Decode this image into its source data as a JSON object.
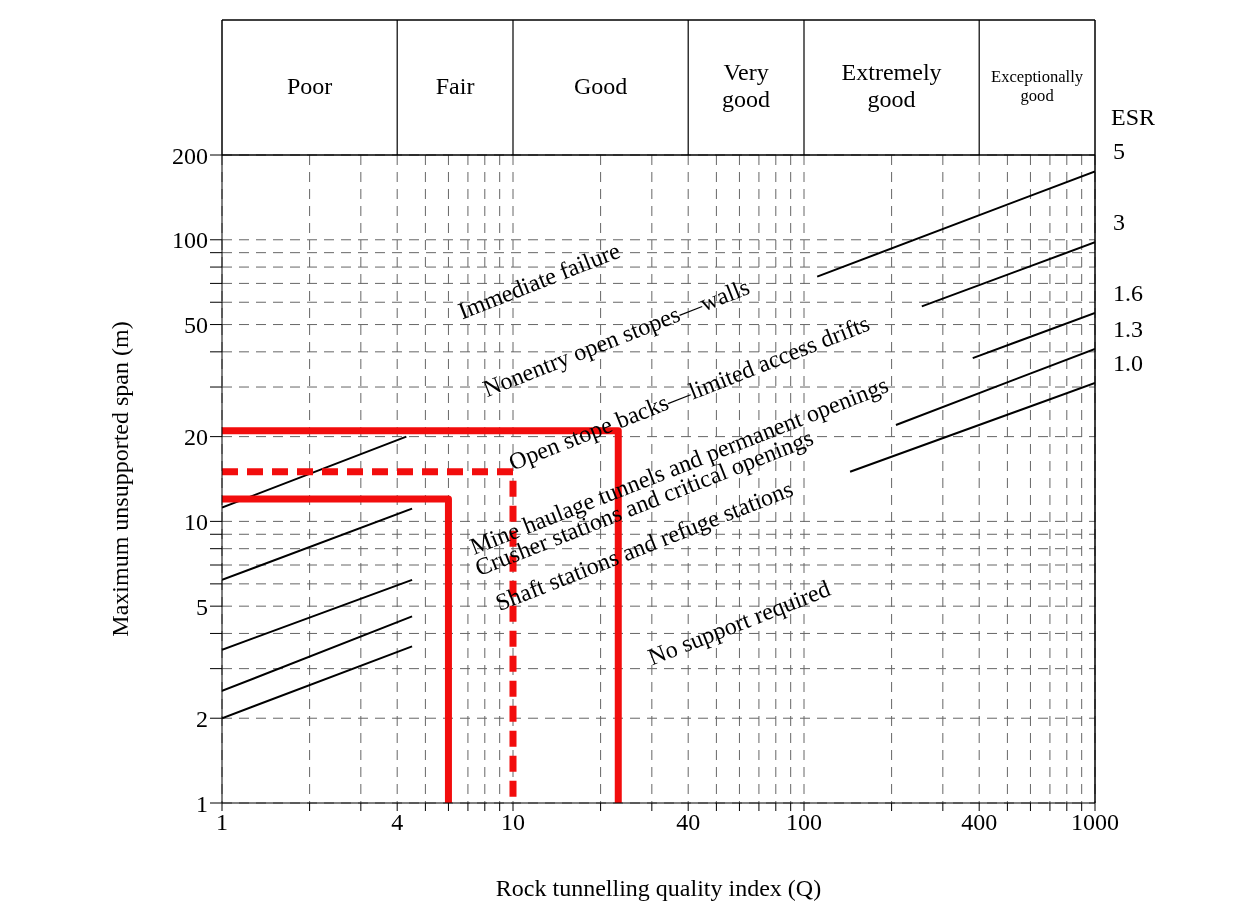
{
  "chart_data": {
    "type": "line",
    "xlabel": "Rock tunnelling quality index (Q)",
    "ylabel": "Maximum unsupported span (m)",
    "legend_title": "ESR",
    "log": "xy",
    "grid": true,
    "marker": "none",
    "line_style": "solid",
    "xlim": [
      1,
      1000
    ],
    "ylim": [
      1,
      200
    ],
    "xticks": [
      1,
      {
        "value": 2,
        "label": null
      },
      {
        "value": 3,
        "label": null
      },
      4,
      {
        "value": 5,
        "label": null
      },
      {
        "value": 6,
        "label": null
      },
      {
        "value": 7,
        "label": null
      },
      {
        "value": 8,
        "label": null
      },
      {
        "value": 9,
        "label": null
      },
      10,
      {
        "value": 20,
        "label": null
      },
      {
        "value": 30,
        "label": null
      },
      40,
      {
        "value": 50,
        "label": null
      },
      {
        "value": 60,
        "label": null
      },
      {
        "value": 70,
        "label": null
      },
      {
        "value": 80,
        "label": null
      },
      {
        "value": 90,
        "label": null
      },
      100,
      {
        "value": 200,
        "label": null
      },
      {
        "value": 300,
        "label": null
      },
      400,
      {
        "value": 500,
        "label": null
      },
      {
        "value": 600,
        "label": null
      },
      {
        "value": 700,
        "label": null
      },
      {
        "value": 800,
        "label": null
      },
      {
        "value": 900,
        "label": null
      },
      1000
    ],
    "yticks": [
      1,
      2,
      {
        "value": 3,
        "label": null
      },
      {
        "value": 4,
        "label": null
      },
      5,
      {
        "value": 6,
        "label": null
      },
      {
        "value": 7,
        "label": null
      },
      {
        "value": 8,
        "label": null
      },
      {
        "value": 9,
        "label": null
      },
      10,
      20,
      {
        "value": 30,
        "label": null
      },
      {
        "value": 40,
        "label": null
      },
      50,
      {
        "value": 60,
        "label": null
      },
      {
        "value": 70,
        "label": null
      },
      {
        "value": 80,
        "label": null
      },
      {
        "value": 90,
        "label": null
      },
      100,
      200
    ],
    "series": [
      {
        "name": "5",
        "color": "#000000",
        "x": [
          1,
          4.3,
          20,
          111,
          1000
        ],
        "values": [
          11.2,
          20,
          null,
          74,
          175
        ]
      },
      {
        "name": "3",
        "color": "#000000",
        "x": [
          1,
          4.5,
          30,
          254,
          1000
        ],
        "values": [
          6.2,
          11.1,
          null,
          58,
          98
        ]
      },
      {
        "name": "1.6",
        "color": "#000000",
        "x": [
          1,
          4.5,
          60,
          380,
          1000
        ],
        "values": [
          3.5,
          6.2,
          null,
          38,
          55
        ]
      },
      {
        "name": "1.3",
        "color": "#000000",
        "x": [
          1,
          4.5,
          40,
          207,
          1000
        ],
        "values": [
          2.5,
          4.6,
          null,
          22,
          41
        ]
      },
      {
        "name": "1.0",
        "color": "#000000",
        "x": [
          1,
          4.5,
          40,
          144,
          1000
        ],
        "values": [
          2.0,
          3.6,
          null,
          15,
          31
        ]
      },
      {
        "color": "#f20d0d",
        "x": [
          1,
          23,
          23
        ],
        "values": [
          21,
          21,
          1
        ]
      },
      {
        "color": "#f20d0d",
        "line_style": "dashed",
        "x": [
          1,
          10,
          10
        ],
        "values": [
          15,
          15,
          1
        ]
      },
      {
        "color": "#f20d0d",
        "x": [
          1,
          6,
          6
        ],
        "values": [
          12,
          12,
          1
        ]
      }
    ],
    "annotations": [
      "Poor",
      "Fair",
      "Good",
      "Very good",
      "Extremely good",
      "Exceptionally good",
      "Immediate failure",
      "Nonentry open stopes—walls",
      "Open stope backs—limited access drifts",
      "Mine haulage tunnels and permanent openings",
      "Crusher stations and critical openings",
      "Shaft stations and refuge stations",
      "No support required"
    ]
  }
}
